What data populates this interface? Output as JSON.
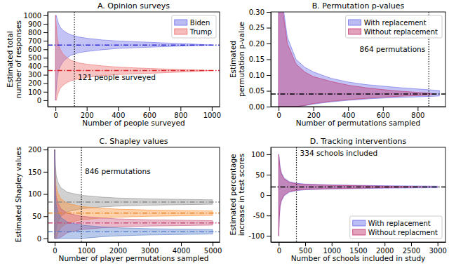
{
  "chart_data": [
    {
      "type": "band",
      "title": "A. Opinion surveys",
      "xlabel": "Number of people surveyed",
      "ylabel": [
        "Estimated total",
        "number of responses"
      ],
      "xlim": [
        -50,
        1050
      ],
      "ylim": [
        -75,
        1040
      ],
      "xticks": [
        0,
        200,
        400,
        600,
        800,
        1000
      ],
      "yticks": [
        0,
        100,
        200,
        300,
        400,
        500,
        600,
        700,
        800,
        900,
        1000
      ],
      "legend": "upper right",
      "series": [
        {
          "name": "Biden",
          "color": "#6a6ae8",
          "x": [
            0,
            5,
            10,
            20,
            30,
            50,
            75,
            100,
            150,
            200,
            300,
            400,
            500,
            600,
            700,
            800,
            900,
            1000
          ],
          "upper": [
            1000,
            1000,
            960,
            900,
            860,
            820,
            790,
            770,
            745,
            730,
            710,
            698,
            690,
            683,
            675,
            668,
            660,
            650
          ],
          "lower": [
            0,
            120,
            250,
            350,
            400,
            460,
            500,
            530,
            560,
            575,
            595,
            610,
            618,
            625,
            632,
            638,
            643,
            650
          ]
        },
        {
          "name": "Trump",
          "color": "#ec6a6a",
          "x": [
            0,
            5,
            10,
            20,
            30,
            50,
            75,
            100,
            150,
            200,
            300,
            400,
            500,
            600,
            700,
            800,
            900,
            1000
          ],
          "upper": [
            1000,
            880,
            750,
            650,
            600,
            540,
            500,
            470,
            440,
            425,
            405,
            390,
            382,
            375,
            368,
            362,
            357,
            350
          ],
          "lower": [
            0,
            0,
            40,
            100,
            140,
            180,
            210,
            230,
            255,
            270,
            290,
            302,
            310,
            317,
            325,
            332,
            340,
            350
          ]
        }
      ],
      "hlines": [
        {
          "value": 650,
          "color": "#2b2bd6",
          "line_style": "dashdot"
        },
        {
          "value": 350,
          "color": "#e02b2b",
          "line_style": "dashdot"
        }
      ],
      "vline": {
        "value": 121,
        "label": "121 people surveyed",
        "line_style": "dotted"
      }
    },
    {
      "type": "band",
      "title": "B. Permutation p-values",
      "xlabel": "Number of permutations sampled",
      "ylabel": [
        "Estimated",
        "permutation p-value"
      ],
      "xlim": [
        -45,
        960
      ],
      "ylim": [
        0,
        0.3
      ],
      "xticks": [
        0,
        200,
        400,
        600,
        800
      ],
      "yticks": [
        {
          "value": 0,
          "label": "0.00"
        },
        {
          "value": 0.05,
          "label": "0.05"
        },
        {
          "value": 0.1,
          "label": "0.10"
        },
        {
          "value": 0.15,
          "label": "0.15"
        },
        {
          "value": 0.2,
          "label": "0.20"
        },
        {
          "value": 0.25,
          "label": "0.25"
        },
        {
          "value": 0.3,
          "label": "0.30"
        }
      ],
      "legend": "upper right",
      "series": [
        {
          "name": "With replacement",
          "color": "#6a6ae8",
          "x": [
            0,
            10,
            25,
            50,
            100,
            150,
            200,
            300,
            400,
            500,
            600,
            700,
            800,
            900,
            925
          ],
          "upper": [
            1.0,
            0.45,
            0.32,
            0.22,
            0.15,
            0.125,
            0.11,
            0.09,
            0.078,
            0.07,
            0.065,
            0.06,
            0.056,
            0.052,
            0.051
          ],
          "lower": [
            0,
            0,
            0,
            0,
            0,
            0.003,
            0.008,
            0.015,
            0.02,
            0.024,
            0.027,
            0.029,
            0.031,
            0.033,
            0.034
          ]
        },
        {
          "name": "Without replacement",
          "color": "#c0306a",
          "x": [
            0,
            10,
            25,
            50,
            100,
            150,
            200,
            300,
            400,
            500,
            600,
            700,
            800,
            864,
            900
          ],
          "upper": [
            1.0,
            0.4,
            0.3,
            0.2,
            0.135,
            0.11,
            0.095,
            0.08,
            0.068,
            0.06,
            0.054,
            0.049,
            0.045,
            0.043,
            0.04
          ],
          "lower": [
            0,
            0,
            0,
            0,
            0,
            0.004,
            0.01,
            0.017,
            0.022,
            0.026,
            0.03,
            0.033,
            0.035,
            0.037,
            0.04
          ]
        }
      ],
      "hlines": [
        {
          "value": 0.04,
          "color": "#000000",
          "line_style": "dashdot"
        }
      ],
      "vline": {
        "value": 864,
        "label": "864 permutations",
        "line_style": "dotted"
      }
    },
    {
      "type": "band",
      "title": "C. Shapley values",
      "xlabel": "Number of player permutations sampled",
      "ylabel": [
        "Estimated Shapley values"
      ],
      "xlim": [
        -220,
        5220
      ],
      "ylim": [
        -8,
        205
      ],
      "xticks": [
        0,
        1000,
        2000,
        3000,
        4000,
        5000
      ],
      "yticks": [
        0,
        50,
        100,
        150,
        200
      ],
      "series": [
        {
          "color": "#8c8c8c",
          "x": [
            0,
            25,
            50,
            100,
            200,
            400,
            846,
            1500,
            2000,
            3000,
            4000,
            5000
          ],
          "upper": [
            200,
            165,
            142,
            127,
            114,
            104,
            97,
            93,
            91,
            89,
            88,
            87
          ],
          "lower": [
            0,
            10,
            22,
            37,
            50,
            60,
            67,
            71,
            73,
            75,
            76,
            77
          ]
        },
        {
          "color": "#ff8c2a",
          "x": [
            0,
            25,
            50,
            100,
            200,
            400,
            846,
            1500,
            2000,
            3000,
            4000,
            5000
          ],
          "upper": [
            200,
            140,
            117,
            102,
            89,
            79,
            72,
            68,
            66,
            64,
            63,
            62
          ],
          "lower": [
            0,
            0,
            0,
            12,
            25,
            35,
            42,
            46,
            48,
            50,
            51,
            52
          ]
        },
        {
          "color": "#c8507a",
          "x": [
            0,
            25,
            50,
            100,
            200,
            400,
            846,
            1500,
            2000,
            3000,
            4000,
            5000
          ],
          "upper": [
            200,
            118,
            95,
            80,
            67,
            57,
            50,
            46,
            44,
            42,
            41,
            40
          ],
          "lower": [
            0,
            0,
            0,
            0,
            3,
            13,
            20,
            24,
            26,
            28,
            29,
            30
          ]
        },
        {
          "color": "#4f78c8",
          "x": [
            0,
            25,
            50,
            100,
            200,
            400,
            846,
            1500,
            2000,
            3000,
            4000,
            5000
          ],
          "upper": [
            200,
            98,
            75,
            60,
            47,
            37,
            30,
            26,
            24,
            22,
            21,
            20
          ],
          "lower": [
            0,
            0,
            0,
            0,
            0,
            0,
            0,
            4,
            6,
            8,
            9,
            10
          ]
        }
      ],
      "hlines": [
        {
          "value": 82,
          "color": "#8c8c8c",
          "line_style": "dashdot"
        },
        {
          "value": 57,
          "color": "#e8852a",
          "line_style": "dashdot"
        },
        {
          "value": 35,
          "color": "#c8507a",
          "line_style": "dashdot"
        },
        {
          "value": 15,
          "color": "#4f78c8",
          "line_style": "dashdot"
        }
      ],
      "vline": {
        "value": 846,
        "label": "846 permutations",
        "line_style": "dotted"
      }
    },
    {
      "type": "band",
      "title": "D. Tracking interventions",
      "xlabel": "Number of schools included in study",
      "ylabel": [
        "Estimated percentage",
        "increase in test scores"
      ],
      "xlim": [
        -150,
        3150
      ],
      "ylim": [
        -115,
        117
      ],
      "xticks": [
        0,
        500,
        1000,
        1500,
        2000,
        2500,
        3000
      ],
      "yticks": [
        -100,
        -50,
        0,
        50,
        100
      ],
      "legend": "lower right",
      "series": [
        {
          "name": "With replacement",
          "color": "#6a6ae8",
          "x": [
            0,
            10,
            25,
            50,
            100,
            200,
            334,
            500,
            1000,
            1500,
            2000,
            2500,
            3000
          ],
          "upper": [
            100,
            90,
            70,
            55,
            42,
            33,
            29,
            27,
            25,
            24,
            23,
            22.5,
            22
          ],
          "lower": [
            -100,
            -60,
            -30,
            -15,
            -2,
            7,
            11,
            13,
            15,
            16,
            17,
            17.5,
            18
          ]
        },
        {
          "name": "Without replacment",
          "color": "#c0306a",
          "x": [
            0,
            10,
            25,
            50,
            100,
            200,
            334,
            500,
            1000,
            1500,
            2000,
            2500,
            3000
          ],
          "upper": [
            100,
            85,
            65,
            52,
            40,
            31,
            28,
            26,
            24,
            23,
            22,
            21,
            20
          ],
          "lower": [
            -100,
            -55,
            -25,
            -12,
            0,
            9,
            12,
            14,
            16,
            17,
            18,
            19,
            20
          ]
        }
      ],
      "hlines": [
        {
          "value": 20,
          "color": "#000000",
          "line_style": "dashdot"
        }
      ],
      "vline": {
        "value": 334,
        "label": "334 schools included",
        "line_style": "dotted"
      }
    }
  ]
}
